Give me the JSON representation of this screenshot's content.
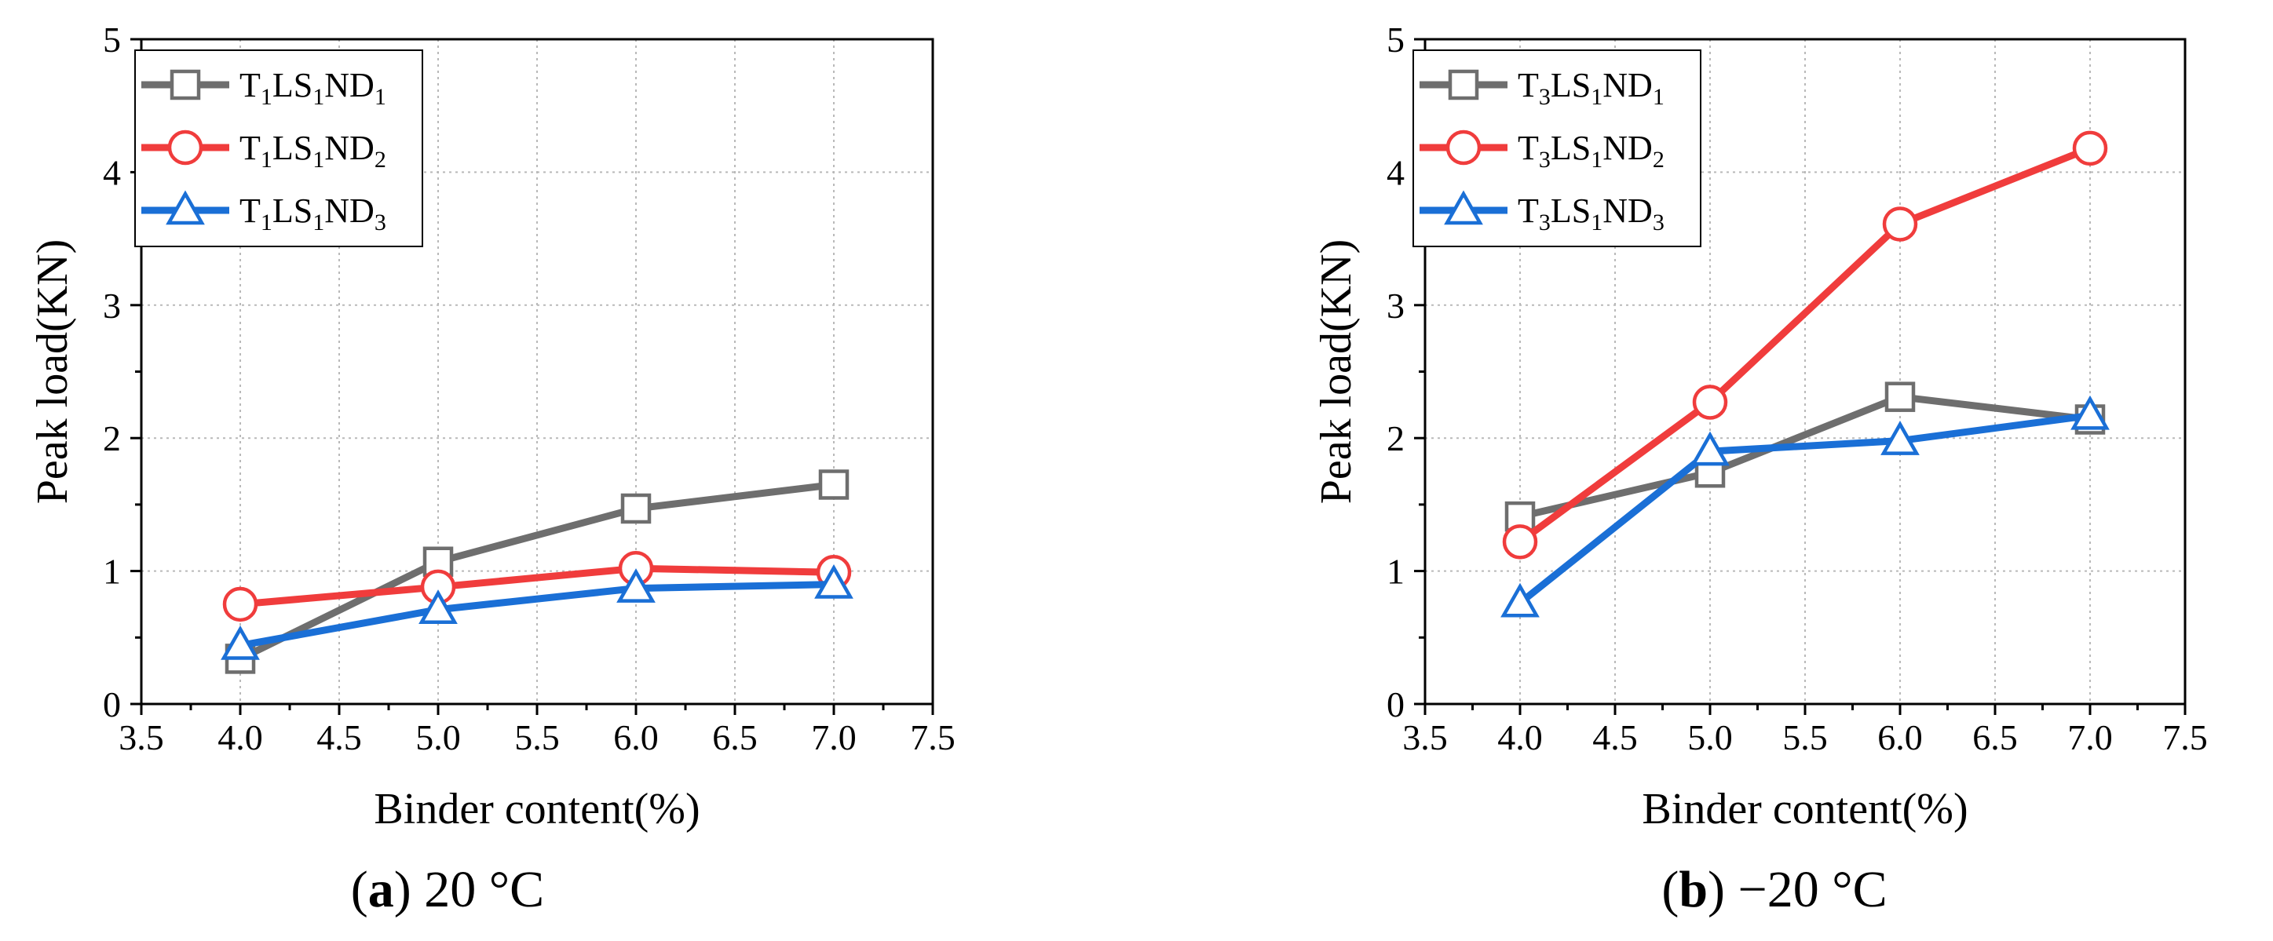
{
  "colors": {
    "gray": "#6e6e6e",
    "red": "#f03c3c",
    "blue": "#1a6fd6",
    "grid": "#b9b9b9",
    "axis": "#000000"
  },
  "chart_data": [
    {
      "type": "line",
      "caption_letter": "(a)",
      "caption_rest": " 20 °C",
      "xlabel": "Binder content(%)",
      "ylabel": "Peak load(KN)",
      "xlim": [
        3.5,
        7.5
      ],
      "ylim": [
        0,
        5
      ],
      "xticks": [
        "3.5",
        "4.0",
        "4.5",
        "5.0",
        "5.5",
        "6.0",
        "6.5",
        "7.0",
        "7.5"
      ],
      "yticks": [
        "0",
        "1",
        "2",
        "3",
        "4",
        "5"
      ],
      "grid": true,
      "legend_position": "top-left",
      "x": [
        4.0,
        5.0,
        6.0,
        7.0
      ],
      "series": [
        {
          "name": "T1LS1ND1",
          "pre": "T",
          "s1": "1",
          "mid": "LS",
          "s2": "1",
          "nd": "ND",
          "s3": "1",
          "marker": "square",
          "color": "#6e6e6e",
          "values": [
            0.34,
            1.07,
            1.47,
            1.65
          ]
        },
        {
          "name": "T1LS1ND2",
          "pre": "T",
          "s1": "1",
          "mid": "LS",
          "s2": "1",
          "nd": "ND",
          "s3": "2",
          "marker": "circle",
          "color": "#f03c3c",
          "values": [
            0.75,
            0.88,
            1.02,
            0.99
          ]
        },
        {
          "name": "T1LS1ND3",
          "pre": "T",
          "s1": "1",
          "mid": "LS",
          "s2": "1",
          "nd": "ND",
          "s3": "3",
          "marker": "triangle",
          "color": "#1a6fd6",
          "values": [
            0.44,
            0.71,
            0.87,
            0.9
          ]
        }
      ]
    },
    {
      "type": "line",
      "caption_letter": "(b)",
      "caption_rest": " −20 °C",
      "xlabel": "Binder content(%)",
      "ylabel": "Peak load(KN)",
      "xlim": [
        3.5,
        7.5
      ],
      "ylim": [
        0,
        5
      ],
      "xticks": [
        "3.5",
        "4.0",
        "4.5",
        "5.0",
        "5.5",
        "6.0",
        "6.5",
        "7.0",
        "7.5"
      ],
      "yticks": [
        "0",
        "1",
        "2",
        "3",
        "4",
        "5"
      ],
      "grid": true,
      "legend_position": "top-left",
      "x": [
        4.0,
        5.0,
        6.0,
        7.0
      ],
      "series": [
        {
          "name": "T3LS1ND1",
          "pre": "T",
          "s1": "3",
          "mid": "LS",
          "s2": "1",
          "nd": "ND",
          "s3": "1",
          "marker": "square",
          "color": "#6e6e6e",
          "values": [
            1.41,
            1.74,
            2.31,
            2.14
          ]
        },
        {
          "name": "T3LS1ND2",
          "pre": "T",
          "s1": "3",
          "mid": "LS",
          "s2": "1",
          "nd": "ND",
          "s3": "2",
          "marker": "circle",
          "color": "#f03c3c",
          "values": [
            1.22,
            2.27,
            3.61,
            4.18
          ]
        },
        {
          "name": "T3LS1ND3",
          "pre": "T",
          "s1": "3",
          "mid": "LS",
          "s2": "1",
          "nd": "ND",
          "s3": "3",
          "marker": "triangle",
          "color": "#1a6fd6",
          "values": [
            0.76,
            1.9,
            1.98,
            2.17
          ]
        }
      ]
    }
  ]
}
